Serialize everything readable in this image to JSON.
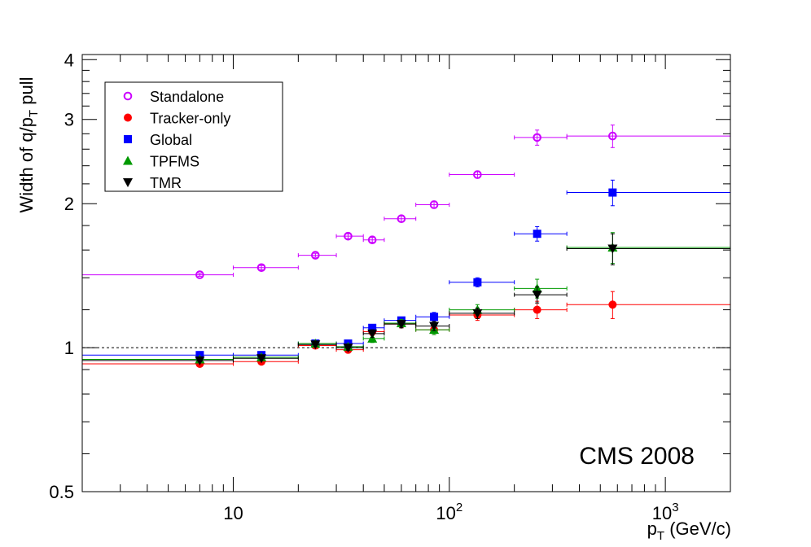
{
  "chart_data": {
    "type": "scatter",
    "title": "",
    "xlabel": "p_T (GeV/c)",
    "ylabel": "Width of q/p_T pull",
    "xscale": "log",
    "yscale": "log",
    "xlim": [
      2.0,
      2000
    ],
    "ylim": [
      0.5,
      4.1
    ],
    "grid": false,
    "legend_position": "top-left",
    "annotation": "CMS 2008",
    "reference_line": {
      "y": 1.0,
      "style": "dashed"
    },
    "x_tick_labels": [
      {
        "value": 10,
        "base": "10",
        "exp": ""
      },
      {
        "value": 100,
        "base": "10",
        "exp": "2"
      },
      {
        "value": 1000,
        "base": "10",
        "exp": "3"
      }
    ],
    "y_tick_labels": [
      {
        "value": 0.5,
        "text": "0.5"
      },
      {
        "value": 1,
        "text": "1"
      },
      {
        "value": 2,
        "text": "2"
      },
      {
        "value": 3,
        "text": "3"
      },
      {
        "value": 4,
        "text": "4"
      }
    ],
    "series": [
      {
        "name": "Standalone",
        "color": "#cc00ff",
        "marker": "open-circle",
        "points": [
          {
            "x": 7,
            "y": 1.42,
            "xlo": 2,
            "xhi": 10,
            "err": 0.01
          },
          {
            "x": 13.5,
            "y": 1.47,
            "xlo": 10,
            "xhi": 20,
            "err": 0.015
          },
          {
            "x": 24,
            "y": 1.56,
            "xlo": 20,
            "xhi": 30,
            "err": 0.015
          },
          {
            "x": 34,
            "y": 1.71,
            "xlo": 30,
            "xhi": 40,
            "err": 0.02
          },
          {
            "x": 44,
            "y": 1.68,
            "xlo": 40,
            "xhi": 50,
            "err": 0.02
          },
          {
            "x": 60,
            "y": 1.86,
            "xlo": 50,
            "xhi": 70,
            "err": 0.025
          },
          {
            "x": 85,
            "y": 1.99,
            "xlo": 70,
            "xhi": 100,
            "err": 0.035
          },
          {
            "x": 135,
            "y": 2.3,
            "xlo": 100,
            "xhi": 200,
            "err": 0.04
          },
          {
            "x": 255,
            "y": 2.75,
            "xlo": 200,
            "xhi": 350,
            "err": 0.1
          },
          {
            "x": 570,
            "y": 2.77,
            "xlo": 350,
            "xhi": 2000,
            "err": 0.15
          }
        ]
      },
      {
        "name": "Tracker-only",
        "color": "#ff0000",
        "marker": "filled-circle",
        "points": [
          {
            "x": 7,
            "y": 0.925,
            "xlo": 2,
            "xhi": 10,
            "err": 0.005
          },
          {
            "x": 13.5,
            "y": 0.935,
            "xlo": 10,
            "xhi": 20,
            "err": 0.007
          },
          {
            "x": 24,
            "y": 1.01,
            "xlo": 20,
            "xhi": 30,
            "err": 0.008
          },
          {
            "x": 34,
            "y": 0.99,
            "xlo": 30,
            "xhi": 40,
            "err": 0.015
          },
          {
            "x": 44,
            "y": 1.08,
            "xlo": 40,
            "xhi": 50,
            "err": 0.02
          },
          {
            "x": 60,
            "y": 1.12,
            "xlo": 50,
            "xhi": 70,
            "err": 0.02
          },
          {
            "x": 85,
            "y": 1.09,
            "xlo": 70,
            "xhi": 100,
            "err": 0.025
          },
          {
            "x": 135,
            "y": 1.17,
            "xlo": 100,
            "xhi": 200,
            "err": 0.03
          },
          {
            "x": 255,
            "y": 1.2,
            "xlo": 200,
            "xhi": 350,
            "err": 0.05
          },
          {
            "x": 570,
            "y": 1.23,
            "xlo": 350,
            "xhi": 2000,
            "err": 0.08
          }
        ]
      },
      {
        "name": "Global",
        "color": "#0000ff",
        "marker": "filled-square",
        "points": [
          {
            "x": 7,
            "y": 0.965,
            "xlo": 2,
            "xhi": 10,
            "err": 0.005
          },
          {
            "x": 13.5,
            "y": 0.965,
            "xlo": 10,
            "xhi": 20,
            "err": 0.007
          },
          {
            "x": 24,
            "y": 1.02,
            "xlo": 20,
            "xhi": 30,
            "err": 0.008
          },
          {
            "x": 34,
            "y": 1.02,
            "xlo": 30,
            "xhi": 40,
            "err": 0.012
          },
          {
            "x": 44,
            "y": 1.1,
            "xlo": 40,
            "xhi": 50,
            "err": 0.015
          },
          {
            "x": 60,
            "y": 1.14,
            "xlo": 50,
            "xhi": 70,
            "err": 0.018
          },
          {
            "x": 85,
            "y": 1.16,
            "xlo": 70,
            "xhi": 100,
            "err": 0.025
          },
          {
            "x": 135,
            "y": 1.37,
            "xlo": 100,
            "xhi": 200,
            "err": 0.03
          },
          {
            "x": 255,
            "y": 1.73,
            "xlo": 200,
            "xhi": 350,
            "err": 0.06
          },
          {
            "x": 570,
            "y": 2.11,
            "xlo": 350,
            "xhi": 2000,
            "err": 0.13
          }
        ]
      },
      {
        "name": "TPFMS",
        "color": "#009900",
        "marker": "filled-triangle-up",
        "points": [
          {
            "x": 7,
            "y": 0.945,
            "xlo": 2,
            "xhi": 10,
            "err": 0.005
          },
          {
            "x": 13.5,
            "y": 0.955,
            "xlo": 10,
            "xhi": 20,
            "err": 0.007
          },
          {
            "x": 24,
            "y": 1.02,
            "xlo": 20,
            "xhi": 30,
            "err": 0.008
          },
          {
            "x": 34,
            "y": 1.005,
            "xlo": 30,
            "xhi": 40,
            "err": 0.012
          },
          {
            "x": 44,
            "y": 1.045,
            "xlo": 40,
            "xhi": 50,
            "err": 0.02
          },
          {
            "x": 60,
            "y": 1.125,
            "xlo": 50,
            "xhi": 70,
            "err": 0.02
          },
          {
            "x": 85,
            "y": 1.09,
            "xlo": 70,
            "xhi": 100,
            "err": 0.025
          },
          {
            "x": 135,
            "y": 1.2,
            "xlo": 100,
            "xhi": 200,
            "err": 0.03
          },
          {
            "x": 255,
            "y": 1.33,
            "xlo": 200,
            "xhi": 350,
            "err": 0.06
          },
          {
            "x": 570,
            "y": 1.62,
            "xlo": 350,
            "xhi": 2000,
            "err": 0.12
          }
        ]
      },
      {
        "name": "TMR",
        "color": "#000000",
        "marker": "filled-triangle-down",
        "points": [
          {
            "x": 7,
            "y": 0.94,
            "xlo": 2,
            "xhi": 10,
            "err": 0.005
          },
          {
            "x": 13.5,
            "y": 0.95,
            "xlo": 10,
            "xhi": 20,
            "err": 0.007
          },
          {
            "x": 24,
            "y": 1.015,
            "xlo": 20,
            "xhi": 30,
            "err": 0.008
          },
          {
            "x": 34,
            "y": 1.0,
            "xlo": 30,
            "xhi": 40,
            "err": 0.012
          },
          {
            "x": 44,
            "y": 1.07,
            "xlo": 40,
            "xhi": 50,
            "err": 0.02
          },
          {
            "x": 60,
            "y": 1.12,
            "xlo": 50,
            "xhi": 70,
            "err": 0.02
          },
          {
            "x": 85,
            "y": 1.11,
            "xlo": 70,
            "xhi": 100,
            "err": 0.025
          },
          {
            "x": 135,
            "y": 1.18,
            "xlo": 100,
            "xhi": 200,
            "err": 0.03
          },
          {
            "x": 255,
            "y": 1.29,
            "xlo": 200,
            "xhi": 350,
            "err": 0.05
          },
          {
            "x": 570,
            "y": 1.61,
            "xlo": 350,
            "xhi": 2000,
            "err": 0.12
          }
        ]
      }
    ]
  }
}
